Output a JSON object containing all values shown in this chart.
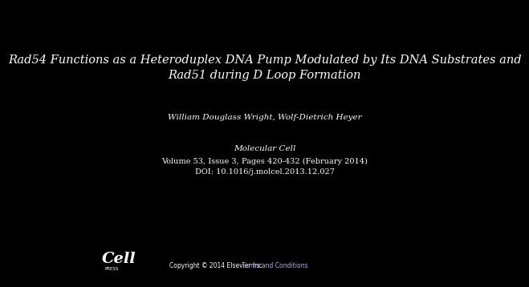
{
  "background_color": "#000000",
  "title_line1": "Rad54 Functions as a Heteroduplex DNA Pump Modulated by Its DNA Substrates and",
  "title_line2": "Rad51 during D Loop Formation",
  "authors": "William Douglass Wright, Wolf-Dietrich Heyer",
  "journal": "Molecular Cell",
  "volume_info": "Volume 53, Issue 3, Pages 420-432 (February 2014)",
  "doi": "DOI: 10.1016/j.molcel.2013.12.027",
  "copyright": "Copyright © 2014 Elsevier Inc.",
  "terms": "Terms and Conditions",
  "cell_logo_text": "Cell",
  "cell_logo_sub": "PRESS",
  "text_color": "#ffffff",
  "link_color": "#aaaaff",
  "title_fontsize": 10.5,
  "authors_fontsize": 7.5,
  "journal_fontsize": 7.5,
  "info_fontsize": 7.0,
  "copyright_fontsize": 5.5
}
